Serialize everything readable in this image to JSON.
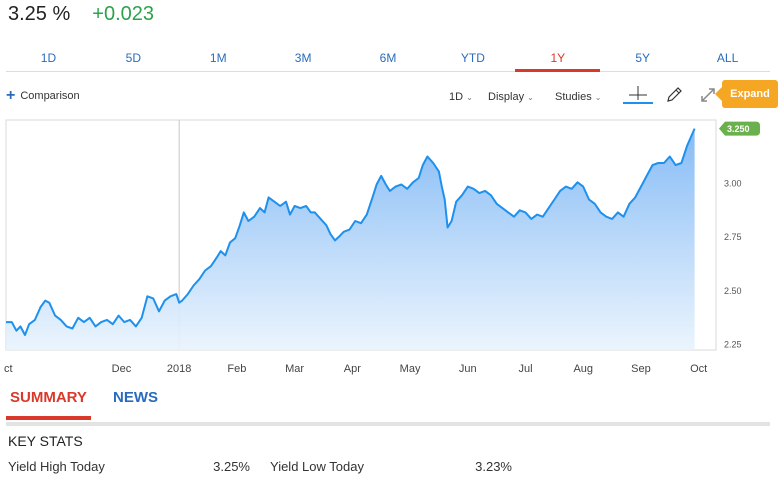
{
  "quote": {
    "price": "3.25 %",
    "change": "+0.023"
  },
  "colors": {
    "positive": "#2aa34a",
    "accent_red": "#d9392b",
    "link_blue": "#2a6cbb",
    "line": "#1e90ee",
    "expand": "#f5a623",
    "last_badge": "#6ab04c"
  },
  "range_tabs": [
    {
      "label": "1D"
    },
    {
      "label": "5D"
    },
    {
      "label": "1M"
    },
    {
      "label": "3M"
    },
    {
      "label": "6M"
    },
    {
      "label": "YTD"
    },
    {
      "label": "1Y",
      "active": true
    },
    {
      "label": "5Y"
    },
    {
      "label": "ALL"
    }
  ],
  "toolbar": {
    "comparison_label": "Comparison",
    "interval_label": "1D",
    "display_label": "Display",
    "studies_label": "Studies",
    "crosshair_icon": "crosshair-icon",
    "draw_icon": "pencil-icon",
    "expand_icon": "expand-arrows-icon",
    "expand_label": "Expand"
  },
  "chart_data": {
    "type": "area",
    "y_ticks": [
      "3.250",
      "3.00",
      "2.75",
      "2.50",
      "2.25"
    ],
    "y_tick_values": [
      3.25,
      3.0,
      2.75,
      2.5,
      2.25
    ],
    "ylim": [
      2.22,
      3.29
    ],
    "x_labels": [
      "ct",
      "Dec",
      "2018",
      "Feb",
      "Mar",
      "Apr",
      "May",
      "Jun",
      "Jul",
      "Aug",
      "Sep",
      "Oct"
    ],
    "x_label_positions": [
      0,
      2,
      3,
      4,
      5,
      6,
      7,
      8,
      9,
      10,
      11,
      12
    ],
    "last_value_label": "3.250",
    "grid": false,
    "points": [
      [
        0.0,
        2.35
      ],
      [
        0.1,
        2.35
      ],
      [
        0.18,
        2.31
      ],
      [
        0.25,
        2.33
      ],
      [
        0.33,
        2.29
      ],
      [
        0.4,
        2.34
      ],
      [
        0.5,
        2.36
      ],
      [
        0.6,
        2.42
      ],
      [
        0.68,
        2.45
      ],
      [
        0.75,
        2.44
      ],
      [
        0.85,
        2.38
      ],
      [
        0.95,
        2.36
      ],
      [
        1.05,
        2.33
      ],
      [
        1.15,
        2.32
      ],
      [
        1.25,
        2.37
      ],
      [
        1.35,
        2.35
      ],
      [
        1.45,
        2.37
      ],
      [
        1.55,
        2.33
      ],
      [
        1.65,
        2.35
      ],
      [
        1.75,
        2.36
      ],
      [
        1.85,
        2.34
      ],
      [
        1.95,
        2.38
      ],
      [
        2.05,
        2.35
      ],
      [
        2.15,
        2.36
      ],
      [
        2.25,
        2.33
      ],
      [
        2.35,
        2.37
      ],
      [
        2.45,
        2.47
      ],
      [
        2.55,
        2.46
      ],
      [
        2.65,
        2.4
      ],
      [
        2.75,
        2.45
      ],
      [
        2.85,
        2.47
      ],
      [
        2.95,
        2.48
      ],
      [
        3.0,
        2.44
      ],
      [
        3.05,
        2.45
      ],
      [
        3.15,
        2.48
      ],
      [
        3.25,
        2.52
      ],
      [
        3.35,
        2.55
      ],
      [
        3.45,
        2.59
      ],
      [
        3.55,
        2.61
      ],
      [
        3.65,
        2.65
      ],
      [
        3.72,
        2.68
      ],
      [
        3.8,
        2.66
      ],
      [
        3.88,
        2.72
      ],
      [
        3.97,
        2.74
      ],
      [
        4.05,
        2.8
      ],
      [
        4.12,
        2.86
      ],
      [
        4.2,
        2.82
      ],
      [
        4.3,
        2.84
      ],
      [
        4.4,
        2.88
      ],
      [
        4.48,
        2.86
      ],
      [
        4.55,
        2.93
      ],
      [
        4.65,
        2.91
      ],
      [
        4.75,
        2.89
      ],
      [
        4.85,
        2.91
      ],
      [
        4.92,
        2.85
      ],
      [
        5.0,
        2.89
      ],
      [
        5.1,
        2.88
      ],
      [
        5.2,
        2.89
      ],
      [
        5.28,
        2.86
      ],
      [
        5.35,
        2.86
      ],
      [
        5.45,
        2.83
      ],
      [
        5.55,
        2.8
      ],
      [
        5.62,
        2.76
      ],
      [
        5.7,
        2.73
      ],
      [
        5.78,
        2.75
      ],
      [
        5.85,
        2.77
      ],
      [
        5.95,
        2.78
      ],
      [
        6.05,
        2.82
      ],
      [
        6.15,
        2.81
      ],
      [
        6.25,
        2.85
      ],
      [
        6.35,
        2.93
      ],
      [
        6.42,
        2.99
      ],
      [
        6.5,
        3.03
      ],
      [
        6.58,
        2.99
      ],
      [
        6.65,
        2.96
      ],
      [
        6.75,
        2.98
      ],
      [
        6.85,
        2.99
      ],
      [
        6.95,
        2.97
      ],
      [
        7.05,
        3.0
      ],
      [
        7.15,
        3.02
      ],
      [
        7.22,
        3.08
      ],
      [
        7.3,
        3.12
      ],
      [
        7.4,
        3.09
      ],
      [
        7.5,
        3.05
      ],
      [
        7.55,
        2.98
      ],
      [
        7.6,
        2.92
      ],
      [
        7.65,
        2.79
      ],
      [
        7.72,
        2.82
      ],
      [
        7.8,
        2.91
      ],
      [
        7.9,
        2.94
      ],
      [
        8.0,
        2.98
      ],
      [
        8.1,
        2.97
      ],
      [
        8.2,
        2.95
      ],
      [
        8.3,
        2.96
      ],
      [
        8.4,
        2.94
      ],
      [
        8.5,
        2.9
      ],
      [
        8.6,
        2.88
      ],
      [
        8.7,
        2.86
      ],
      [
        8.8,
        2.84
      ],
      [
        8.9,
        2.87
      ],
      [
        9.0,
        2.86
      ],
      [
        9.1,
        2.83
      ],
      [
        9.2,
        2.85
      ],
      [
        9.3,
        2.84
      ],
      [
        9.4,
        2.88
      ],
      [
        9.5,
        2.92
      ],
      [
        9.6,
        2.96
      ],
      [
        9.7,
        2.98
      ],
      [
        9.8,
        2.97
      ],
      [
        9.9,
        3.0
      ],
      [
        10.0,
        2.98
      ],
      [
        10.1,
        2.92
      ],
      [
        10.2,
        2.9
      ],
      [
        10.3,
        2.86
      ],
      [
        10.4,
        2.84
      ],
      [
        10.5,
        2.83
      ],
      [
        10.6,
        2.86
      ],
      [
        10.7,
        2.84
      ],
      [
        10.8,
        2.9
      ],
      [
        10.9,
        2.93
      ],
      [
        11.0,
        2.98
      ],
      [
        11.1,
        3.03
      ],
      [
        11.2,
        3.08
      ],
      [
        11.3,
        3.09
      ],
      [
        11.4,
        3.09
      ],
      [
        11.5,
        3.12
      ],
      [
        11.6,
        3.08
      ],
      [
        11.7,
        3.09
      ],
      [
        11.8,
        3.17
      ],
      [
        11.88,
        3.22
      ],
      [
        11.93,
        3.25
      ]
    ]
  },
  "tabs2": {
    "summary": "SUMMARY",
    "news": "NEWS"
  },
  "key_stats": {
    "title": "KEY STATS",
    "yield_high_label": "Yield High Today",
    "yield_high_value": "3.25%",
    "yield_low_label": "Yield Low Today",
    "yield_low_value": "3.23%"
  }
}
